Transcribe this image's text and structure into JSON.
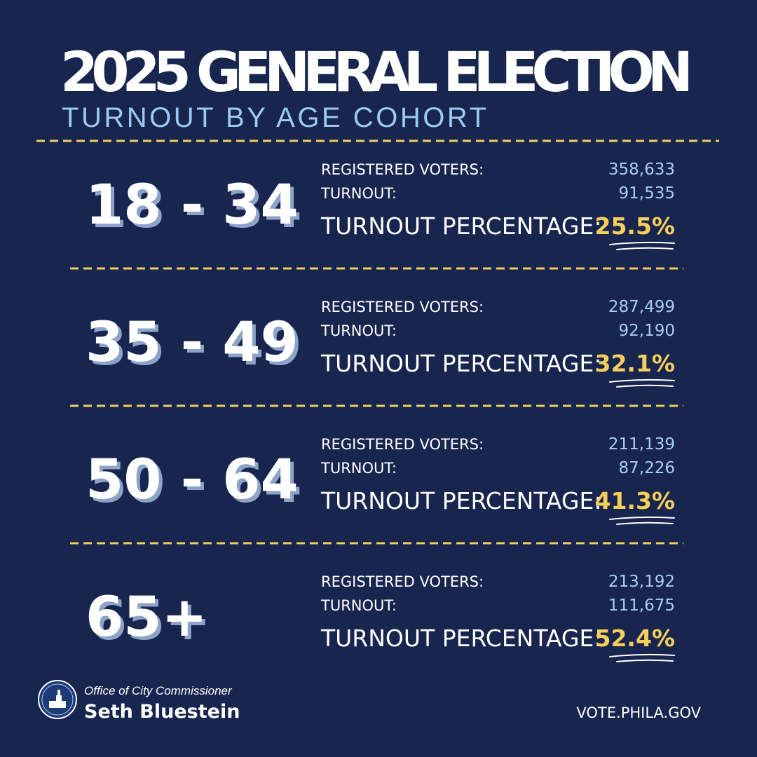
{
  "header": {
    "title": "2025 GENERAL ELECTION",
    "subtitle": "TURNOUT BY AGE COHORT"
  },
  "cohorts": [
    {
      "age": "18 - 34",
      "rows": [
        {
          "label": "REGISTERED VOTERS:",
          "value": "358,633"
        },
        {
          "label": "TURNOUT:",
          "value": "91,535"
        },
        {
          "label": "TURNOUT PERCENTAGE:",
          "value": "25.5%"
        }
      ]
    },
    {
      "age": "35 - 49",
      "rows": [
        {
          "label": "REGISTERED VOTERS:",
          "value": "287,499"
        },
        {
          "label": "TURNOUT:",
          "value": "92,190"
        },
        {
          "label": "TURNOUT PERCENTAGE:",
          "value": "32.1%"
        }
      ]
    },
    {
      "age": "50 - 64",
      "rows": [
        {
          "label": "REGISTERED VOTERS:",
          "value": "211,139"
        },
        {
          "label": "TURNOUT:",
          "value": "87,226"
        },
        {
          "label": "TURNOUT PERCENTAGE:",
          "value": "41.3%"
        }
      ]
    },
    {
      "age": "65+",
      "rows": [
        {
          "label": "REGISTERED VOTERS:",
          "value": "213,192"
        },
        {
          "label": "TURNOUT:",
          "value": "111,675"
        },
        {
          "label": "TURNOUT PERCENTAGE:",
          "value": "52.4%"
        }
      ]
    }
  ],
  "footer": {
    "office": "Office of City Commissioner",
    "name": "Seth Bluestein",
    "url": "VOTE.PHILA.GOV"
  }
}
